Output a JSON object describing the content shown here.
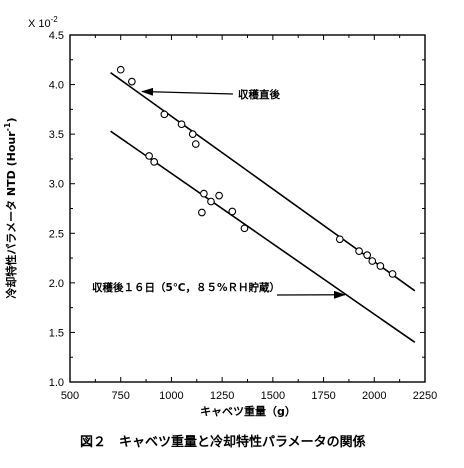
{
  "chart_data": {
    "type": "scatter",
    "title": "",
    "xlabel": "キャベツ重量（g）",
    "ylabel": "冷却特性パラメータ NTD (Hour",
    "ylabel_superscript": "-1",
    "ylabel_close": ")",
    "y_multiplier": "X 10",
    "y_multiplier_exp": "-2",
    "xlim": [
      500,
      2250
    ],
    "ylim": [
      1.0,
      4.5
    ],
    "x_ticks": [
      500,
      750,
      1000,
      1250,
      1500,
      1750,
      2000,
      2250
    ],
    "y_ticks": [
      1.0,
      1.5,
      2.0,
      2.5,
      3.0,
      3.5,
      4.0,
      4.5
    ],
    "x_tick_labels": [
      "500",
      "750",
      "1000",
      "1250",
      "1500",
      "1750",
      "2000",
      "2250"
    ],
    "y_tick_labels": [
      "1.0",
      "1.5",
      "2.0",
      "2.5",
      "3.0",
      "3.5",
      "4.0",
      "4.5"
    ],
    "series": [
      {
        "name": "収穫直後",
        "marker": "open-circle",
        "x": [
          750,
          805,
          965,
          1050,
          1105,
          1120,
          1830,
          1925,
          1965,
          1990,
          2030,
          2090
        ],
        "y": [
          4.15,
          4.03,
          3.7,
          3.6,
          3.5,
          3.4,
          2.44,
          2.32,
          2.28,
          2.22,
          2.17,
          2.09
        ],
        "fit": {
          "x1": 700,
          "y1": 4.12,
          "x2": 2200,
          "y2": 1.92
        }
      },
      {
        "name": "収穫後１６日（5℃，８５%ＲＨ貯蔵）",
        "marker": "open-circle",
        "x": [
          890,
          915,
          1160,
          1195,
          1235,
          1150,
          1300,
          1360
        ],
        "y": [
          3.28,
          3.22,
          2.9,
          2.82,
          2.88,
          2.71,
          2.72,
          2.55
        ],
        "fit": {
          "x1": 700,
          "y1": 3.53,
          "x2": 2200,
          "y2": 1.4
        }
      }
    ],
    "annotations": [
      {
        "text": "収穫直後",
        "arrow_to": {
          "x": 855,
          "y": 3.93
        }
      },
      {
        "text": "収穫後１６日（5℃，８５%ＲＨ貯蔵）",
        "arrow_to": {
          "x": 1855,
          "y": 1.88
        }
      }
    ],
    "grid": false,
    "legend": "none"
  },
  "caption": "図２　キャベツ重量と冷却特性パラメータの関係"
}
